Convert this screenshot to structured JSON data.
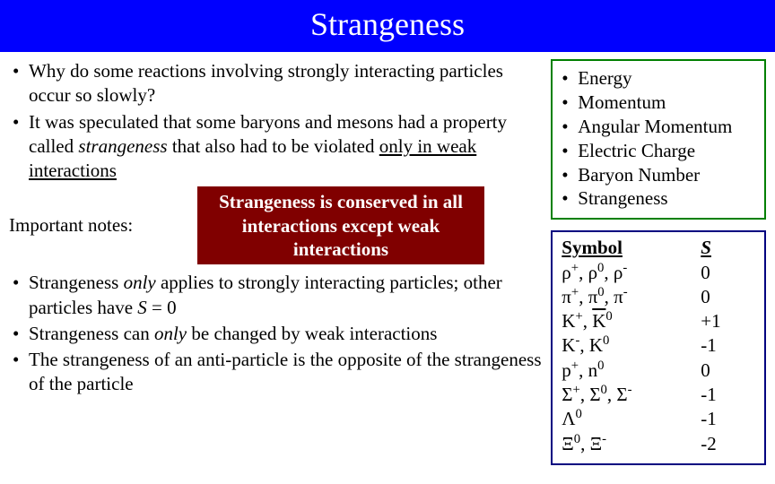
{
  "title": "Strangeness",
  "left": {
    "bullets1": [
      "Why do some reactions involving strongly interacting particles occur so slowly?",
      "It was speculated that some baryons and mesons had a property called <span class=\"italic\">strangeness</span> that also had to be violated <span class=\"underline\">only in weak interactions</span>"
    ],
    "callout": "Strangeness is conserved in all interactions except weak interactions",
    "notes_label": "Important notes:",
    "bullets2": [
      "Strangeness <span class=\"italic\">only</span> applies to strongly interacting particles; other particles have <span class=\"italic\">S</span> = 0",
      "Strangeness can <span class=\"italic\">only</span> be changed by weak interactions",
      "The strangeness of an anti-particle is the opposite of the strangeness of the particle"
    ]
  },
  "right": {
    "conserved": [
      "Energy",
      "Momentum",
      "Angular Momentum",
      "Electric Charge",
      "Baryon Number",
      "Strangeness"
    ],
    "table_header": {
      "symbol": "Symbol",
      "s": "S"
    },
    "rows": [
      {
        "symbol": "ρ<sup>+</sup>, ρ<sup>0</sup>, ρ<sup>-</sup>",
        "s": "0"
      },
      {
        "symbol": "π<sup>+</sup>, π<sup>0</sup>, π<sup>-</sup>",
        "s": "0"
      },
      {
        "symbol": "K<sup>+</sup>, <span class=\"ol\">K</span><sup>0</sup>",
        "s": "+1"
      },
      {
        "symbol": "K<sup>-</sup>, K<sup>0</sup>",
        "s": "-1"
      },
      {
        "symbol": "p<sup>+</sup>, n<sup>0</sup>",
        "s": "0"
      },
      {
        "symbol": "Σ<sup>+</sup>, Σ<sup>0</sup>, Σ<sup>-</sup>",
        "s": "-1"
      },
      {
        "symbol": "Λ<sup>0</sup>",
        "s": "-1"
      },
      {
        "symbol": "Ξ<sup>0</sup>, Ξ<sup>-</sup>",
        "s": "-2"
      }
    ]
  },
  "colors": {
    "title_bg": "#0000ff",
    "title_fg": "#ffffff",
    "callout_bg": "#800000",
    "callout_fg": "#ffffff",
    "green_border": "#008000",
    "blue_border": "#000080",
    "body_bg": "#ffffff",
    "text": "#000000"
  }
}
